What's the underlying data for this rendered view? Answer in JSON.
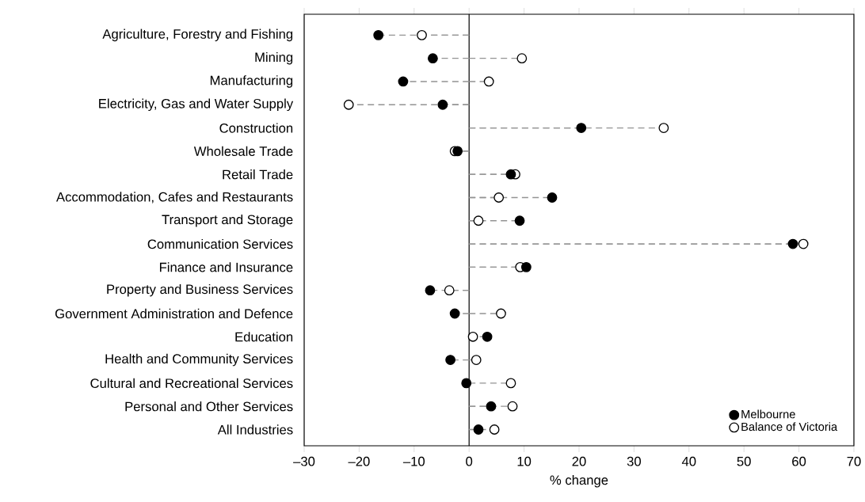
{
  "chart_data": {
    "type": "lollipop",
    "orientation": "horizontal",
    "xlabel": "% change",
    "categories": [
      "Agriculture, Forestry and Fishing",
      "Mining",
      "Manufacturing",
      "Electricity, Gas and Water Supply",
      "Construction",
      "Wholesale Trade",
      "Retail Trade",
      "Accommodation, Cafes and Restaurants",
      "Transport and Storage",
      "Communication Services",
      "Finance and Insurance",
      "Property and Business Services",
      "Government Administration and Defence",
      "Education",
      "Health and Community Services",
      "Cultural and Recreational Services",
      "Personal and Other Services",
      "All Industries"
    ],
    "series": [
      {
        "name": "Melbourne",
        "color": "#000000",
        "values": [
          -16.5,
          -6.6,
          -12.0,
          -4.8,
          20.4,
          -2.1,
          7.6,
          15.1,
          9.2,
          58.9,
          10.4,
          -7.1,
          -2.6,
          3.3,
          -3.4,
          -0.5,
          4.0,
          1.7
        ]
      },
      {
        "name": "Balance of Victoria",
        "color": "#ffffff",
        "values": [
          -8.6,
          9.6,
          3.6,
          -21.9,
          35.4,
          -2.6,
          8.4,
          5.4,
          1.7,
          60.8,
          9.3,
          -3.6,
          5.8,
          0.7,
          1.3,
          7.6,
          7.9,
          4.6
        ]
      }
    ],
    "xlim": [
      -30,
      70
    ],
    "xticks": [
      {
        "value": -30,
        "label": "–30"
      },
      {
        "value": -20,
        "label": "–20"
      },
      {
        "value": -10,
        "label": "–10"
      },
      0,
      10,
      20,
      30,
      40,
      50,
      60,
      70
    ],
    "ref_lines": [
      {
        "axis": "x",
        "value": 0,
        "color": "#000000"
      }
    ],
    "marker": "circle",
    "line_style": "dashed",
    "legend": "bottom right",
    "grid": false
  }
}
